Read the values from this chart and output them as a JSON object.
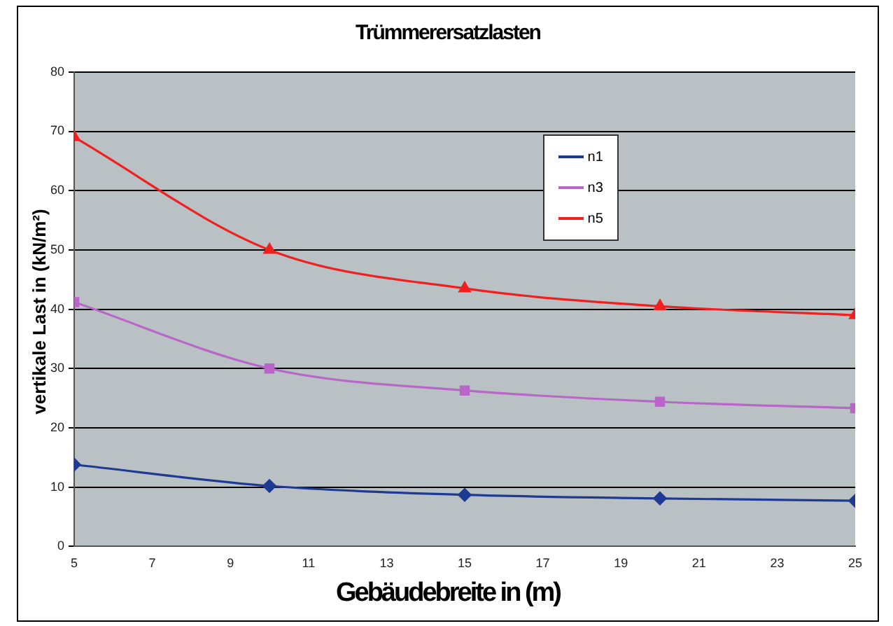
{
  "chart_data": {
    "type": "line",
    "title": "Trümmerersatzlasten",
    "xlabel": "Gebäudebreite in (m)",
    "ylabel": "vertikale Last in (kN/m²)",
    "x": [
      5,
      10,
      15,
      20,
      25
    ],
    "series": [
      {
        "name": "n1",
        "color": "#1f3a93",
        "marker": "diamond",
        "values": [
          13.8,
          10.2,
          8.7,
          8.1,
          7.7
        ]
      },
      {
        "name": "n3",
        "color": "#b866c8",
        "marker": "square",
        "values": [
          41.2,
          30,
          26.3,
          24.4,
          23.3
        ]
      },
      {
        "name": "n5",
        "color": "#f02020",
        "marker": "triangle",
        "values": [
          69,
          50,
          43.5,
          40.5,
          39
        ]
      }
    ],
    "xlim": [
      5,
      25
    ],
    "xticks": [
      5,
      7,
      9,
      11,
      13,
      15,
      17,
      19,
      21,
      23,
      25
    ],
    "ylim": [
      0,
      80
    ],
    "yticks": [
      0,
      10,
      20,
      30,
      40,
      50,
      60,
      70,
      80
    ],
    "grid": "y",
    "legend": "top right",
    "line_style": "solid"
  }
}
